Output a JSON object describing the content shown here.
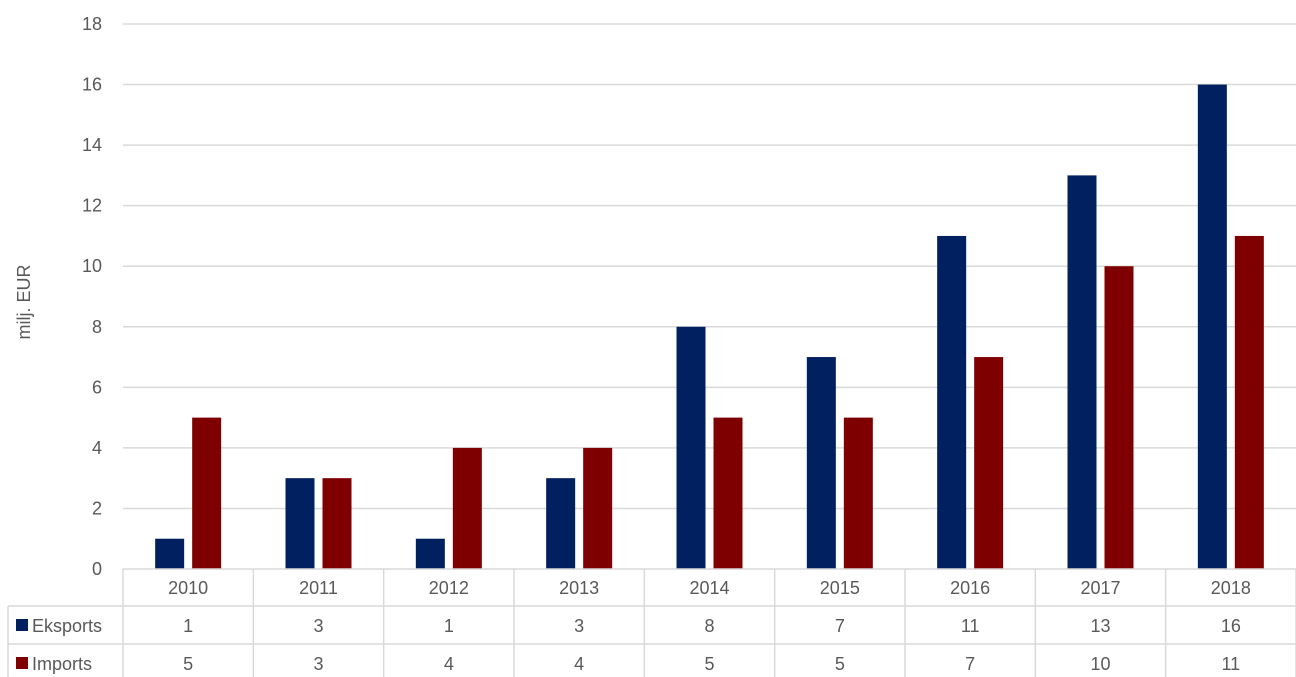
{
  "chart_data": {
    "type": "bar",
    "ylabel": "milj. EUR",
    "ylim": [
      0,
      18
    ],
    "ytick_step": 2,
    "grid": true,
    "legend": "data table below chart",
    "categories": [
      "2010",
      "2011",
      "2012",
      "2013",
      "2014",
      "2015",
      "2016",
      "2017",
      "2018"
    ],
    "series": [
      {
        "name": "Eksports",
        "color": "#002060",
        "values": [
          1,
          3,
          1,
          3,
          8,
          7,
          11,
          13,
          16
        ]
      },
      {
        "name": "Imports",
        "color": "#7f0000",
        "values": [
          5,
          3,
          4,
          4,
          5,
          5,
          7,
          10,
          11
        ]
      }
    ]
  }
}
